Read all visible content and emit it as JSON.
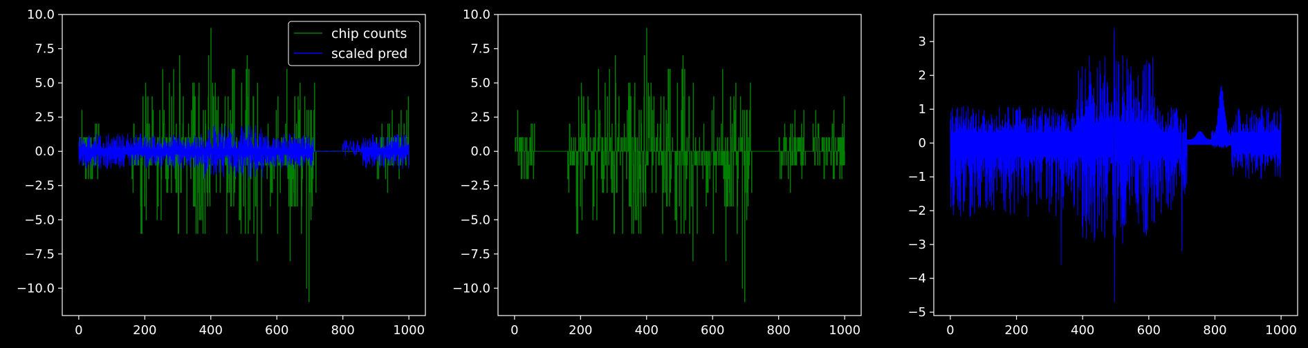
{
  "figure": {
    "background": "#000000",
    "axis_color": "#ffffff",
    "text_color": "#ffffff"
  },
  "chart_data": [
    {
      "type": "line",
      "panel": "left",
      "xlim": [
        -50,
        1050
      ],
      "ylim": [
        -12,
        10
      ],
      "xticks": [
        0,
        200,
        400,
        600,
        800,
        1000
      ],
      "xtick_labels": [
        "0",
        "200",
        "400",
        "600",
        "800",
        "1000"
      ],
      "yticks": [
        10.0,
        7.5,
        5.0,
        2.5,
        0.0,
        -2.5,
        -5.0,
        -7.5,
        -10.0
      ],
      "ytick_labels": [
        "10.0",
        "7.5",
        "5.0",
        "2.5",
        "0.0",
        "−2.5",
        "−5.0",
        "−7.5",
        "−10.0"
      ],
      "legend": {
        "location": "top-right",
        "entries": [
          {
            "label": "chip counts",
            "color": "#008000"
          },
          {
            "label": "scaled pred",
            "color": "#0000ff"
          }
        ]
      },
      "series": [
        {
          "name": "chip counts",
          "color": "#008000",
          "x_range": [
            0,
            1000
          ],
          "style": "step",
          "active_regions": [
            [
              0,
              60
            ],
            [
              160,
              720
            ],
            [
              900,
              1000
            ]
          ],
          "max_value": 9,
          "min_value": -11,
          "peaks": [
            [
              400,
              9
            ],
            [
              305,
              7
            ],
            [
              393,
              7
            ],
            [
              510,
              7
            ],
            [
              630,
              6
            ],
            [
              998,
              4
            ],
            [
              697,
              -11
            ],
            [
              690,
              -10
            ],
            [
              540,
              -8
            ],
            [
              640,
              -8
            ]
          ]
        },
        {
          "name": "scaled pred",
          "color": "#0000ff",
          "x_range": [
            0,
            1000
          ],
          "style": "line",
          "approx_range": [
            -2.7,
            2.4
          ]
        }
      ]
    },
    {
      "type": "line",
      "panel": "middle",
      "xlim": [
        -50,
        1050
      ],
      "ylim": [
        -12,
        10
      ],
      "xticks": [
        0,
        200,
        400,
        600,
        800,
        1000
      ],
      "xtick_labels": [
        "0",
        "200",
        "400",
        "600",
        "800",
        "1000"
      ],
      "yticks": [
        10.0,
        7.5,
        5.0,
        2.5,
        0.0,
        -2.5,
        -5.0,
        -7.5,
        -10.0
      ],
      "ytick_labels": [
        "10.0",
        "7.5",
        "5.0",
        "2.5",
        "0.0",
        "−2.5",
        "−5.0",
        "−7.5",
        "−10.0"
      ],
      "series": [
        {
          "color": "#008000",
          "x_range": [
            0,
            1000
          ],
          "style": "step",
          "active_regions": [
            [
              0,
              60
            ],
            [
              160,
              720
            ],
            [
              800,
              880
            ],
            [
              900,
              1000
            ]
          ],
          "max_value": 9,
          "min_value": -11,
          "peaks": [
            [
              400,
              9
            ],
            [
              305,
              7
            ],
            [
              393,
              7
            ],
            [
              510,
              7
            ],
            [
              630,
              6
            ],
            [
              998,
              4
            ],
            [
              697,
              -11
            ],
            [
              690,
              -10
            ],
            [
              540,
              -8
            ],
            [
              640,
              -8
            ]
          ]
        }
      ]
    },
    {
      "type": "line",
      "panel": "right",
      "xlim": [
        -50,
        1050
      ],
      "ylim": [
        -5.1,
        3.8
      ],
      "xticks": [
        0,
        200,
        400,
        600,
        800,
        1000
      ],
      "xtick_labels": [
        "0",
        "200",
        "400",
        "600",
        "800",
        "1000"
      ],
      "yticks": [
        3,
        2,
        1,
        0,
        -1,
        -2,
        -3,
        -4,
        -5
      ],
      "ytick_labels": [
        "3",
        "2",
        "1",
        "0",
        "−1",
        "−2",
        "−3",
        "−4",
        "−5"
      ],
      "series": [
        {
          "color": "#0000ff",
          "x_range": [
            0,
            1000
          ],
          "style": "line",
          "max_value": 3.4,
          "min_value": -4.7,
          "peaks": [
            [
              495,
              3.4
            ],
            [
              820,
              1.7
            ],
            [
              497,
              -4.7
            ],
            [
              335,
              -3.6
            ],
            [
              700,
              -3.2
            ]
          ]
        }
      ]
    }
  ]
}
